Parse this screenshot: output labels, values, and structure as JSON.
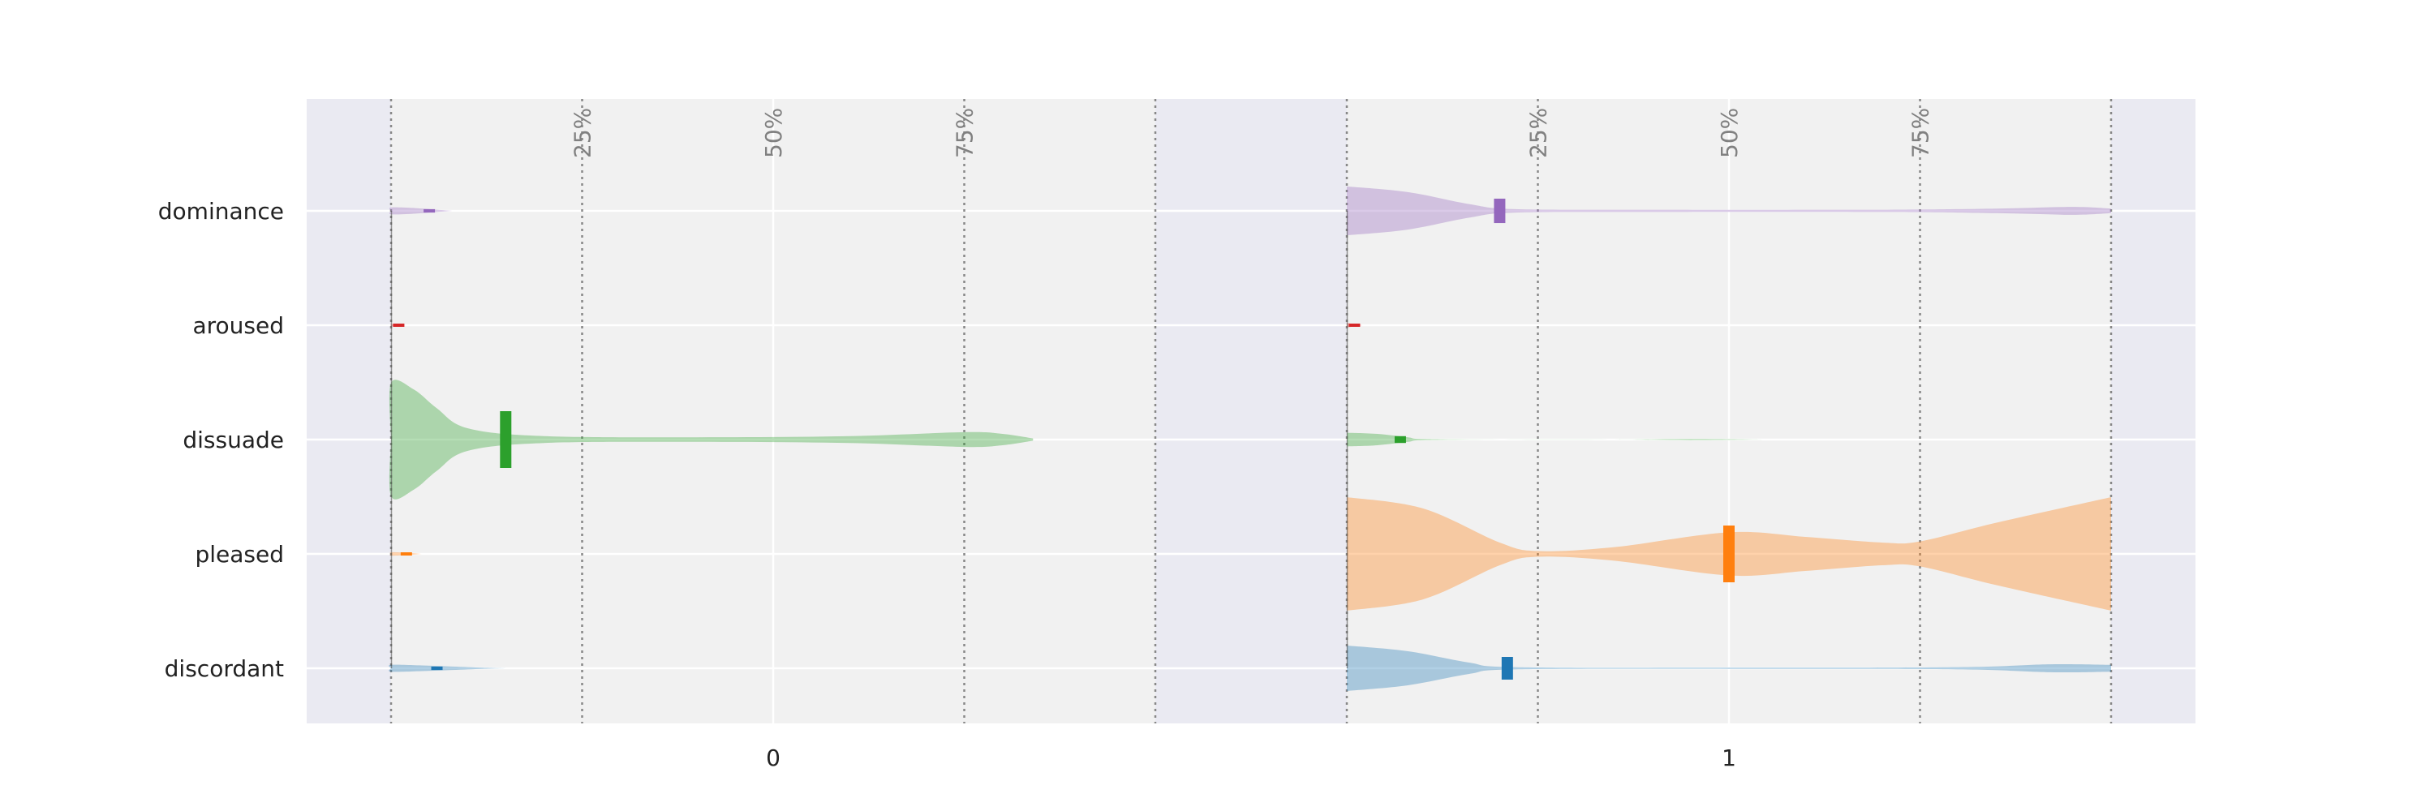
{
  "chart_data": {
    "type": "violin",
    "grid": true,
    "legend": "none",
    "colors": {
      "panel_bg": "#eaeaf2",
      "inner_bg": "#f1f1f1",
      "grid": "#ffffff",
      "quantile_line": "#888888"
    },
    "categories": [
      "dominance",
      "aroused",
      "dissuade",
      "pleased",
      "discordant"
    ],
    "series_colors": {
      "dominance": "#9467bd",
      "aroused": "#d62728",
      "dissuade": "#2ca02c",
      "pleased": "#ff7f0e",
      "discordant": "#1f77b4"
    },
    "x_tick_labels": [
      "0",
      "1"
    ],
    "quantile_labels": [
      "25%",
      "50%",
      "75%"
    ],
    "groups": [
      {
        "name": "0",
        "violins": [
          {
            "category": "dominance",
            "profile": [
              [
                0.0,
                0.0
              ],
              [
                0.0,
                0.06
              ],
              [
                0.03,
                0.05
              ],
              [
                0.06,
                0.02
              ],
              [
                0.08,
                0.0
              ]
            ],
            "median": 0.05
          },
          {
            "category": "aroused",
            "profile": [
              [
                0.0,
                0.0
              ],
              [
                0.0,
                0.02
              ],
              [
                0.01,
                0.0
              ]
            ],
            "median": 0.01
          },
          {
            "category": "dissuade",
            "profile": [
              [
                0.0,
                0.0
              ],
              [
                0.0,
                1.0
              ],
              [
                0.03,
                0.88
              ],
              [
                0.06,
                0.55
              ],
              [
                0.1,
                0.2
              ],
              [
                0.2,
                0.06
              ],
              [
                0.4,
                0.04
              ],
              [
                0.6,
                0.06
              ],
              [
                0.75,
                0.13
              ],
              [
                0.8,
                0.1
              ],
              [
                0.84,
                0.02
              ]
            ],
            "median": 0.15
          },
          {
            "category": "pleased",
            "profile": [
              [
                0.0,
                0.0
              ],
              [
                0.0,
                0.03
              ],
              [
                0.02,
                0.02
              ],
              [
                0.04,
                0.0
              ]
            ],
            "median": 0.02
          },
          {
            "category": "discordant",
            "profile": [
              [
                0.0,
                0.0
              ],
              [
                0.0,
                0.06
              ],
              [
                0.04,
                0.05
              ],
              [
                0.08,
                0.03
              ],
              [
                0.12,
                0.01
              ],
              [
                0.15,
                0.0
              ]
            ],
            "median": 0.06
          }
        ]
      },
      {
        "name": "1",
        "violins": [
          {
            "category": "dominance",
            "profile": [
              [
                0.0,
                0.43
              ],
              [
                0.08,
                0.33
              ],
              [
                0.16,
                0.12
              ],
              [
                0.22,
                0.03
              ],
              [
                0.4,
                0.02
              ],
              [
                0.7,
                0.02
              ],
              [
                0.85,
                0.04
              ],
              [
                0.95,
                0.07
              ],
              [
                1.0,
                0.04
              ]
            ],
            "median": 0.2
          },
          {
            "category": "aroused",
            "profile": [
              [
                0.0,
                0.04
              ],
              [
                0.01,
                0.02
              ],
              [
                0.02,
                0.0
              ]
            ],
            "median": 0.01
          },
          {
            "category": "dissuade",
            "profile": [
              [
                0.0,
                0.12
              ],
              [
                0.04,
                0.1
              ],
              [
                0.08,
                0.04
              ],
              [
                0.1,
                0.01
              ],
              [
                0.2,
                0.0
              ],
              [
                0.35,
                0.0
              ],
              [
                0.45,
                0.01
              ],
              [
                0.55,
                0.0
              ]
            ],
            "median": 0.07
          },
          {
            "category": "pleased",
            "profile": [
              [
                0.0,
                1.0
              ],
              [
                0.1,
                0.8
              ],
              [
                0.2,
                0.2
              ],
              [
                0.25,
                0.05
              ],
              [
                0.35,
                0.12
              ],
              [
                0.5,
                0.38
              ],
              [
                0.6,
                0.3
              ],
              [
                0.7,
                0.2
              ],
              [
                0.75,
                0.22
              ],
              [
                0.85,
                0.55
              ],
              [
                1.0,
                1.0
              ]
            ],
            "median": 0.5
          },
          {
            "category": "discordant",
            "profile": [
              [
                0.0,
                0.4
              ],
              [
                0.08,
                0.3
              ],
              [
                0.16,
                0.1
              ],
              [
                0.22,
                0.02
              ],
              [
                0.5,
                0.01
              ],
              [
                0.8,
                0.02
              ],
              [
                0.92,
                0.07
              ],
              [
                1.0,
                0.06
              ]
            ],
            "median": 0.21
          }
        ]
      }
    ]
  }
}
